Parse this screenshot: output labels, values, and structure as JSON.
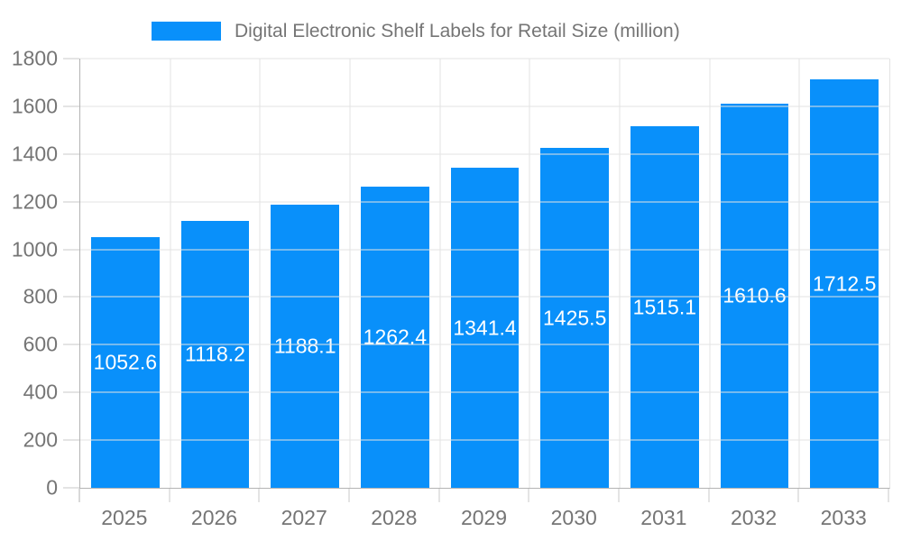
{
  "legend": {
    "label": "Digital Electronic Shelf Labels for Retail Size (million)"
  },
  "chart_data": {
    "type": "bar",
    "title": "Digital Electronic Shelf Labels for Retail Size (million)",
    "series_name": "Digital Electronic Shelf Labels for Retail Size (million)",
    "categories": [
      "2025",
      "2026",
      "2027",
      "2028",
      "2029",
      "2030",
      "2031",
      "2032",
      "2033"
    ],
    "values": [
      1052.6,
      1118.2,
      1188.1,
      1262.4,
      1341.4,
      1425.5,
      1515.1,
      1610.6,
      1712.5
    ],
    "xlabel": "",
    "ylabel": "",
    "ylim": [
      0,
      1800
    ],
    "yticks": [
      0,
      200,
      400,
      600,
      800,
      1000,
      1200,
      1400,
      1600,
      1800
    ],
    "grid": true,
    "legend_position": "top",
    "value_labels": "inside-middle",
    "colors": {
      "bar": "#0990fa",
      "value_label": "#ffffff",
      "axis_text": "#757575",
      "grid_line": "#e3e3e3",
      "axis_line": "#b3b3b3",
      "tick": "#c9c9c9",
      "background": "#ffffff"
    }
  }
}
